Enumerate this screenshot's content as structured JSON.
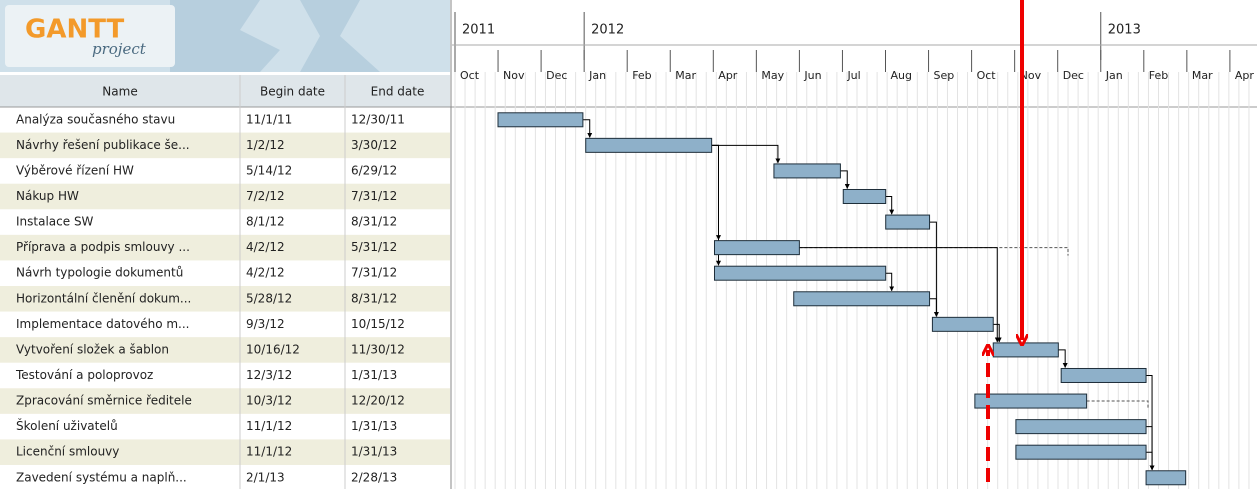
{
  "logo": {
    "title": "GANTT",
    "subtitle": "project"
  },
  "table": {
    "columns": [
      "Name",
      "Begin date",
      "End date"
    ],
    "rows": [
      [
        "Analýza současného stavu",
        "11/1/11",
        "12/30/11"
      ],
      [
        "Návrhy řešení publikace še...",
        "1/2/12",
        "3/30/12"
      ],
      [
        "Výběrové řízení HW",
        "5/14/12",
        "6/29/12"
      ],
      [
        "Nákup HW",
        "7/2/12",
        "7/31/12"
      ],
      [
        "Instalace SW",
        "8/1/12",
        "8/31/12"
      ],
      [
        "Příprava a podpis smlouvy ...",
        "4/2/12",
        "5/31/12"
      ],
      [
        "Návrh typologie dokumentů",
        "4/2/12",
        "7/31/12"
      ],
      [
        "Horizontální členění dokum...",
        "5/28/12",
        "8/31/12"
      ],
      [
        "Implementace datového m...",
        "9/3/12",
        "10/15/12"
      ],
      [
        "Vytvoření složek a šablon",
        "10/16/12",
        "11/30/12"
      ],
      [
        "Testování a poloprovoz",
        "12/3/12",
        "1/31/13"
      ],
      [
        "Zpracování směrnice ředitele",
        "10/3/12",
        "12/20/12"
      ],
      [
        "Školení uživatelů",
        "11/1/12",
        "1/31/13"
      ],
      [
        "Licenční smlouvy",
        "11/1/12",
        "1/31/13"
      ],
      [
        "Zavedení systému a naplň...",
        "2/1/13",
        "2/28/13"
      ]
    ]
  },
  "timeline": {
    "years": [
      "2011",
      "2012",
      "2013"
    ],
    "months": [
      "Oct",
      "Nov",
      "Dec",
      "Jan",
      "Feb",
      "Mar",
      "Apr",
      "May",
      "Jun",
      "Jul",
      "Aug",
      "Sep",
      "Oct",
      "Nov",
      "Dec",
      "Jan",
      "Feb",
      "Mar",
      "Apr"
    ]
  }
}
